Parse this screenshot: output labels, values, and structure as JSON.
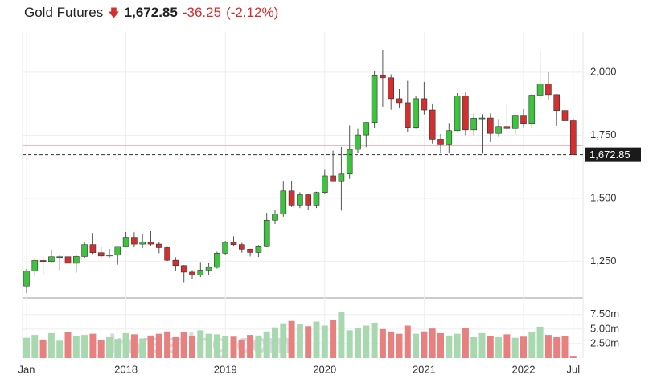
{
  "header": {
    "title": "Gold Futures",
    "change": -36.25,
    "change_percent": "(-2.12%)"
  },
  "watermark": "Investing.com",
  "chart_data": {
    "type": "candlestick",
    "categories": [
      "Jan",
      null,
      null,
      null,
      null,
      null,
      null,
      null,
      null,
      null,
      null,
      null,
      "2018",
      null,
      null,
      null,
      null,
      null,
      null,
      null,
      null,
      null,
      null,
      null,
      "2019",
      null,
      null,
      null,
      null,
      null,
      null,
      null,
      null,
      null,
      null,
      null,
      "2020",
      null,
      null,
      null,
      null,
      null,
      null,
      null,
      null,
      null,
      null,
      null,
      "2021",
      null,
      null,
      null,
      null,
      null,
      null,
      null,
      null,
      null,
      null,
      null,
      "2022",
      null,
      null,
      null,
      null,
      null,
      "Jul"
    ],
    "open": [
      1152,
      1211,
      1253,
      1249,
      1268,
      1268,
      1242,
      1269,
      1316,
      1284,
      1271,
      1275,
      1309,
      1345,
      1318,
      1327,
      1318,
      1304,
      1254,
      1233,
      1207,
      1195,
      1215,
      1226,
      1282,
      1325,
      1316,
      1298,
      1285,
      1311,
      1413,
      1437,
      1529,
      1473,
      1514,
      1473,
      1523,
      1589,
      1566,
      1596,
      1694,
      1751,
      1800,
      1986,
      1978,
      1895,
      1879,
      1781,
      1895,
      1850,
      1734,
      1715,
      1768,
      1906,
      1771,
      1817,
      1818,
      1757,
      1784,
      1776,
      1829,
      1797,
      1909,
      1954,
      1911,
      1848,
      1807
    ],
    "high": [
      1220,
      1264,
      1264,
      1297,
      1274,
      1298,
      1275,
      1326,
      1362,
      1307,
      1299,
      1310,
      1366,
      1365,
      1356,
      1369,
      1326,
      1310,
      1266,
      1235,
      1215,
      1247,
      1242,
      1288,
      1331,
      1349,
      1323,
      1300,
      1314,
      1442,
      1453,
      1566,
      1567,
      1524,
      1516,
      1526,
      1613,
      1689,
      1704,
      1788,
      1775,
      1802,
      2005,
      2089,
      1992,
      1933,
      1966,
      1906,
      1962,
      1876,
      1755,
      1798,
      1917,
      1919,
      1836,
      1833,
      1836,
      1814,
      1876,
      1833,
      1854,
      1915,
      2079,
      2000,
      1913,
      1879,
      1816
    ],
    "low": [
      1124,
      1191,
      1196,
      1246,
      1214,
      1239,
      1205,
      1264,
      1279,
      1264,
      1264,
      1237,
      1305,
      1308,
      1303,
      1312,
      1282,
      1251,
      1211,
      1167,
      1181,
      1187,
      1196,
      1221,
      1276,
      1312,
      1284,
      1269,
      1267,
      1308,
      1398,
      1427,
      1465,
      1461,
      1454,
      1461,
      1518,
      1566,
      1451,
      1577,
      1680,
      1703,
      1780,
      1863,
      1851,
      1860,
      1764,
      1775,
      1832,
      1717,
      1677,
      1679,
      1766,
      1750,
      1750,
      1677,
      1723,
      1746,
      1771,
      1753,
      1781,
      1779,
      1891,
      1889,
      1787,
      1805,
      1671
    ],
    "close": [
      1211,
      1253,
      1249,
      1268,
      1268,
      1242,
      1269,
      1316,
      1284,
      1271,
      1275,
      1309,
      1345,
      1318,
      1327,
      1318,
      1304,
      1254,
      1233,
      1207,
      1195,
      1215,
      1226,
      1282,
      1325,
      1316,
      1298,
      1285,
      1311,
      1413,
      1437,
      1529,
      1473,
      1514,
      1473,
      1523,
      1589,
      1566,
      1596,
      1694,
      1751,
      1800,
      1986,
      1978,
      1895,
      1879,
      1781,
      1895,
      1850,
      1734,
      1715,
      1768,
      1906,
      1771,
      1817,
      1818,
      1757,
      1784,
      1776,
      1829,
      1797,
      1909,
      1954,
      1911,
      1848,
      1807,
      1672.85
    ],
    "volume": [
      3500000,
      4000000,
      3200000,
      4300000,
      3000000,
      4500000,
      3800000,
      4000000,
      4200000,
      3100000,
      3600000,
      3300000,
      4300000,
      4100000,
      3400000,
      3900000,
      4200000,
      4600000,
      3600000,
      4500000,
      3900000,
      4800000,
      4200000,
      4100000,
      3800000,
      3700000,
      3200000,
      4000000,
      3900000,
      4600000,
      5300000,
      6000000,
      6400000,
      5800000,
      5500000,
      6300000,
      5600000,
      6600000,
      7900000,
      4800000,
      5200000,
      5600000,
      6100000,
      5000000,
      4600000,
      4200000,
      5600000,
      4200000,
      4600000,
      5100000,
      4300000,
      3900000,
      4200000,
      5200000,
      3600000,
      4300000,
      3800000,
      3600000,
      4100000,
      3500000,
      3700000,
      4500000,
      5400000,
      4000000,
      3600000,
      3800000,
      400000
    ],
    "up_color": "#3dc43d",
    "down_color": "#d32f2f",
    "up_volume_color": "#a8d8b0",
    "down_volume_color": "#e88080",
    "ylim": [
      1108,
      2159
    ],
    "yticks": [
      {
        "value": 1250,
        "label": "1,250"
      },
      {
        "value": 1500,
        "label": "1,500"
      },
      {
        "value": 1750,
        "label": "1,750"
      },
      {
        "value": 2000,
        "label": "2,000"
      }
    ],
    "volume_ylim": [
      0,
      10100000
    ],
    "volume_ticks": [
      {
        "value": 2500000,
        "label": "2.50m"
      },
      {
        "value": 5000000,
        "label": "5.00m"
      },
      {
        "value": 7500000,
        "label": "7.50m"
      }
    ],
    "last_price": 1672.85,
    "last_price_label": "1,672.85",
    "previous_close": 1709.1,
    "grid": true
  }
}
